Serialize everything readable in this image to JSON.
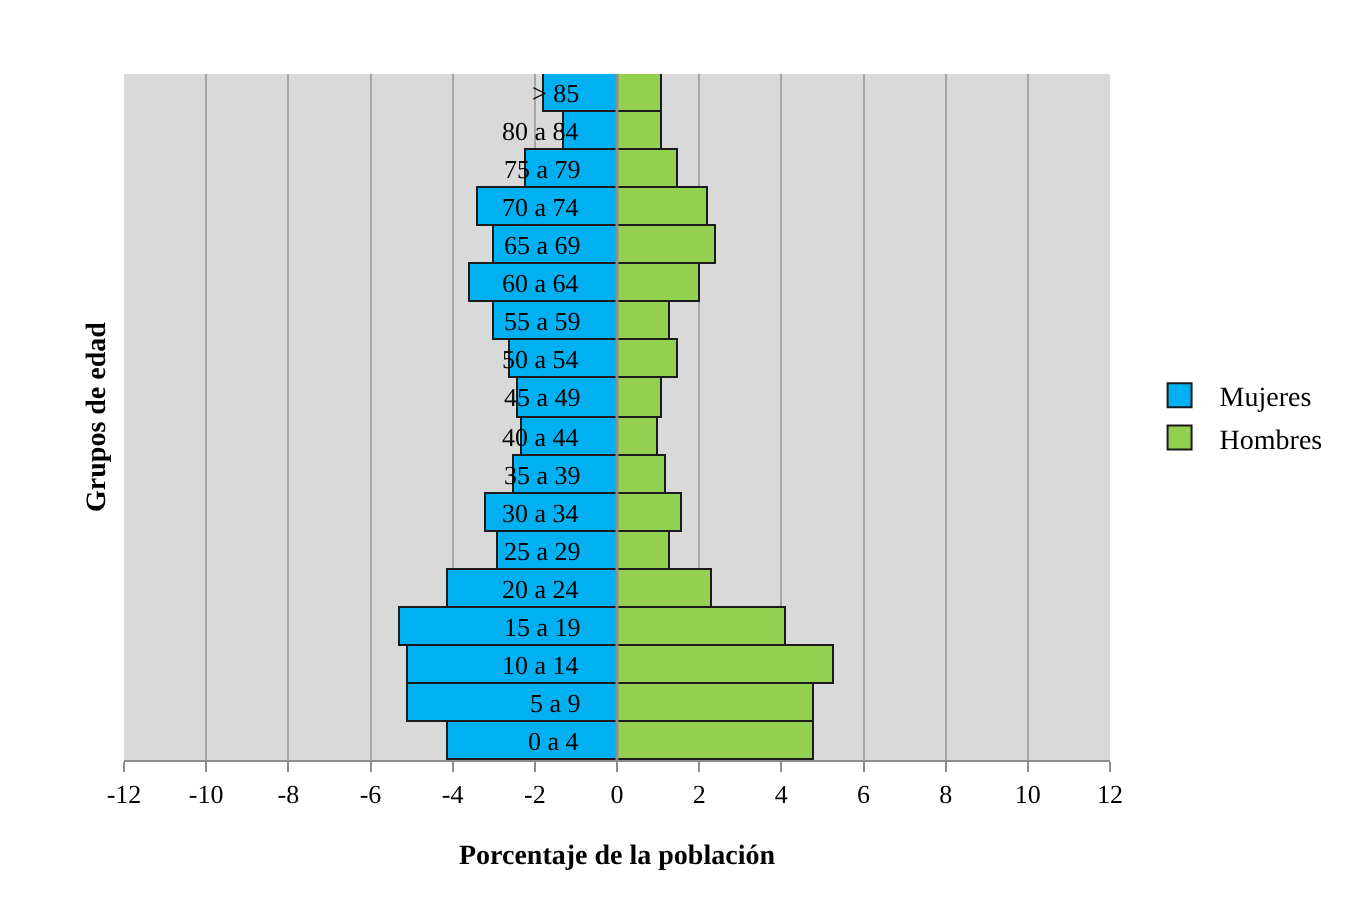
{
  "chart_data": {
    "type": "bar",
    "orientation": "horizontal",
    "stacked": true,
    "xlabel": "Porcentaje de la población",
    "ylabel": "Grupos de edad",
    "categories": [
      "> 85",
      "80 a 84",
      "75 a 79",
      "70 a 74",
      "65 a 69",
      "60 a 64",
      "55 a 59",
      "50 a 54",
      "45 a 49",
      "40 a 44",
      "35 a 39",
      "30 a 34",
      "25 a 29",
      "20 a 24",
      "15 a 19",
      "10 a 14",
      "5 a 9",
      "0 a 4"
    ],
    "series": [
      {
        "name": "Mujeres",
        "color": "#00b0f0",
        "values": [
          -1.8,
          -1.3,
          -2.2,
          -3.4,
          -3.0,
          -3.6,
          -3.0,
          -2.6,
          -2.4,
          -2.3,
          -2.5,
          -3.2,
          -2.9,
          -4.1,
          -5.3,
          -5.1,
          -5.1,
          -4.1
        ]
      },
      {
        "name": "Hombres",
        "color": "#92d050",
        "values": [
          1.1,
          1.1,
          1.5,
          2.2,
          2.4,
          2.0,
          1.3,
          1.5,
          1.1,
          1.0,
          1.2,
          1.6,
          1.3,
          2.3,
          4.1,
          5.3,
          4.8,
          4.8
        ]
      }
    ],
    "xlim": [
      -12,
      12
    ],
    "xticks": [
      -12,
      -10,
      -8,
      -6,
      -4,
      -2,
      0,
      2,
      4,
      6,
      8,
      10,
      12
    ],
    "grid": "x",
    "legend": "right"
  }
}
